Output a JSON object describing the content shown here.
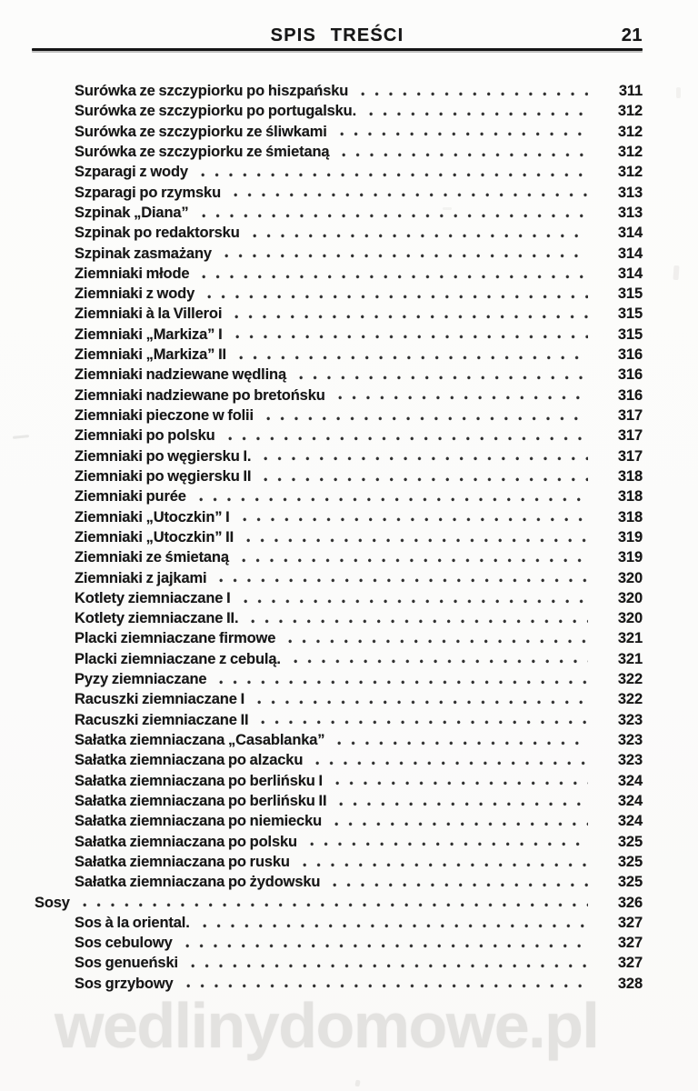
{
  "header": {
    "title": "SPIS TREŚCI",
    "page_number": "21"
  },
  "toc": {
    "entries": [
      {
        "label": "Surówka ze szczypiorku po hiszpańsku",
        "page": "311",
        "level": 1
      },
      {
        "label": "Surówka ze szczypiorku po portugalsku.",
        "page": "312",
        "level": 1
      },
      {
        "label": "Surówka ze szczypiorku ze śliwkami",
        "page": "312",
        "level": 1
      },
      {
        "label": "Surówka ze szczypiorku ze śmietaną",
        "page": "312",
        "level": 1
      },
      {
        "label": "Szparagi z wody",
        "page": "312",
        "level": 1
      },
      {
        "label": "Szparagi po rzymsku",
        "page": "313",
        "level": 1
      },
      {
        "label": "Szpinak „Diana”",
        "page": "313",
        "level": 1
      },
      {
        "label": "Szpinak po redaktorsku",
        "page": "314",
        "level": 1
      },
      {
        "label": "Szpinak zasmażany",
        "page": "314",
        "level": 1
      },
      {
        "label": "Ziemniaki młode",
        "page": "314",
        "level": 1
      },
      {
        "label": "Ziemniaki z wody",
        "page": "315",
        "level": 1
      },
      {
        "label": "Ziemniaki à la Villeroi",
        "page": "315",
        "level": 1
      },
      {
        "label": "Ziemniaki „Markiza” I",
        "page": "315",
        "level": 1
      },
      {
        "label": "Ziemniaki „Markiza” II",
        "page": "316",
        "level": 1
      },
      {
        "label": "Ziemniaki nadziewane wędliną",
        "page": "316",
        "level": 1
      },
      {
        "label": "Ziemniaki nadziewane po bretońsku",
        "page": "316",
        "level": 1
      },
      {
        "label": "Ziemniaki pieczone w folii",
        "page": "317",
        "level": 1
      },
      {
        "label": "Ziemniaki po polsku",
        "page": "317",
        "level": 1
      },
      {
        "label": "Ziemniaki po węgiersku I.",
        "page": "317",
        "level": 1
      },
      {
        "label": "Ziemniaki po węgiersku II",
        "page": "318",
        "level": 1
      },
      {
        "label": "Ziemniaki purée",
        "page": "318",
        "level": 1
      },
      {
        "label": "Ziemniaki „Utoczkin” I",
        "page": "318",
        "level": 1
      },
      {
        "label": "Ziemniaki „Utoczkin” II",
        "page": "319",
        "level": 1
      },
      {
        "label": "Ziemniaki ze śmietaną",
        "page": "319",
        "level": 1
      },
      {
        "label": "Ziemniaki z jajkami",
        "page": "320",
        "level": 1
      },
      {
        "label": "Kotlety ziemniaczane I",
        "page": "320",
        "level": 1
      },
      {
        "label": "Kotlety ziemniaczane II.",
        "page": "320",
        "level": 1
      },
      {
        "label": "Placki ziemniaczane firmowe",
        "page": "321",
        "level": 1
      },
      {
        "label": "Placki ziemniaczane z cebulą.",
        "page": "321",
        "level": 1
      },
      {
        "label": "Pyzy ziemniaczane",
        "page": "322",
        "level": 1
      },
      {
        "label": "Racuszki ziemniaczane I",
        "page": "322",
        "level": 1
      },
      {
        "label": "Racuszki ziemniaczane II",
        "page": "323",
        "level": 1
      },
      {
        "label": "Sałatka ziemniaczana „Casablanka”",
        "page": "323",
        "level": 1
      },
      {
        "label": "Sałatka ziemniaczana po alzacku",
        "page": "323",
        "level": 1
      },
      {
        "label": "Sałatka ziemniaczana po berlińsku I",
        "page": "324",
        "level": 1
      },
      {
        "label": "Sałatka ziemniaczana po berlińsku II",
        "page": "324",
        "level": 1
      },
      {
        "label": "Sałatka ziemniaczana po niemiecku",
        "page": "324",
        "level": 1
      },
      {
        "label": "Sałatka ziemniaczana po polsku",
        "page": "325",
        "level": 1
      },
      {
        "label": "Sałatka ziemniaczana po rusku",
        "page": "325",
        "level": 1
      },
      {
        "label": "Sałatka ziemniaczana po żydowsku",
        "page": "325",
        "level": 1
      },
      {
        "label": "Sosy",
        "page": "326",
        "level": 0
      },
      {
        "label": "Sos à la oriental.",
        "page": "327",
        "level": 1
      },
      {
        "label": "Sos cebulowy",
        "page": "327",
        "level": 1
      },
      {
        "label": "Sos genueński",
        "page": "327",
        "level": 1
      },
      {
        "label": "Sos grzybowy",
        "page": "328",
        "level": 1
      }
    ]
  },
  "watermark": {
    "text": "wedlinydomowe.pl"
  },
  "colors": {
    "text": "#181818",
    "watermark": "#e3e2e0",
    "paper": "#fbfbfa"
  }
}
